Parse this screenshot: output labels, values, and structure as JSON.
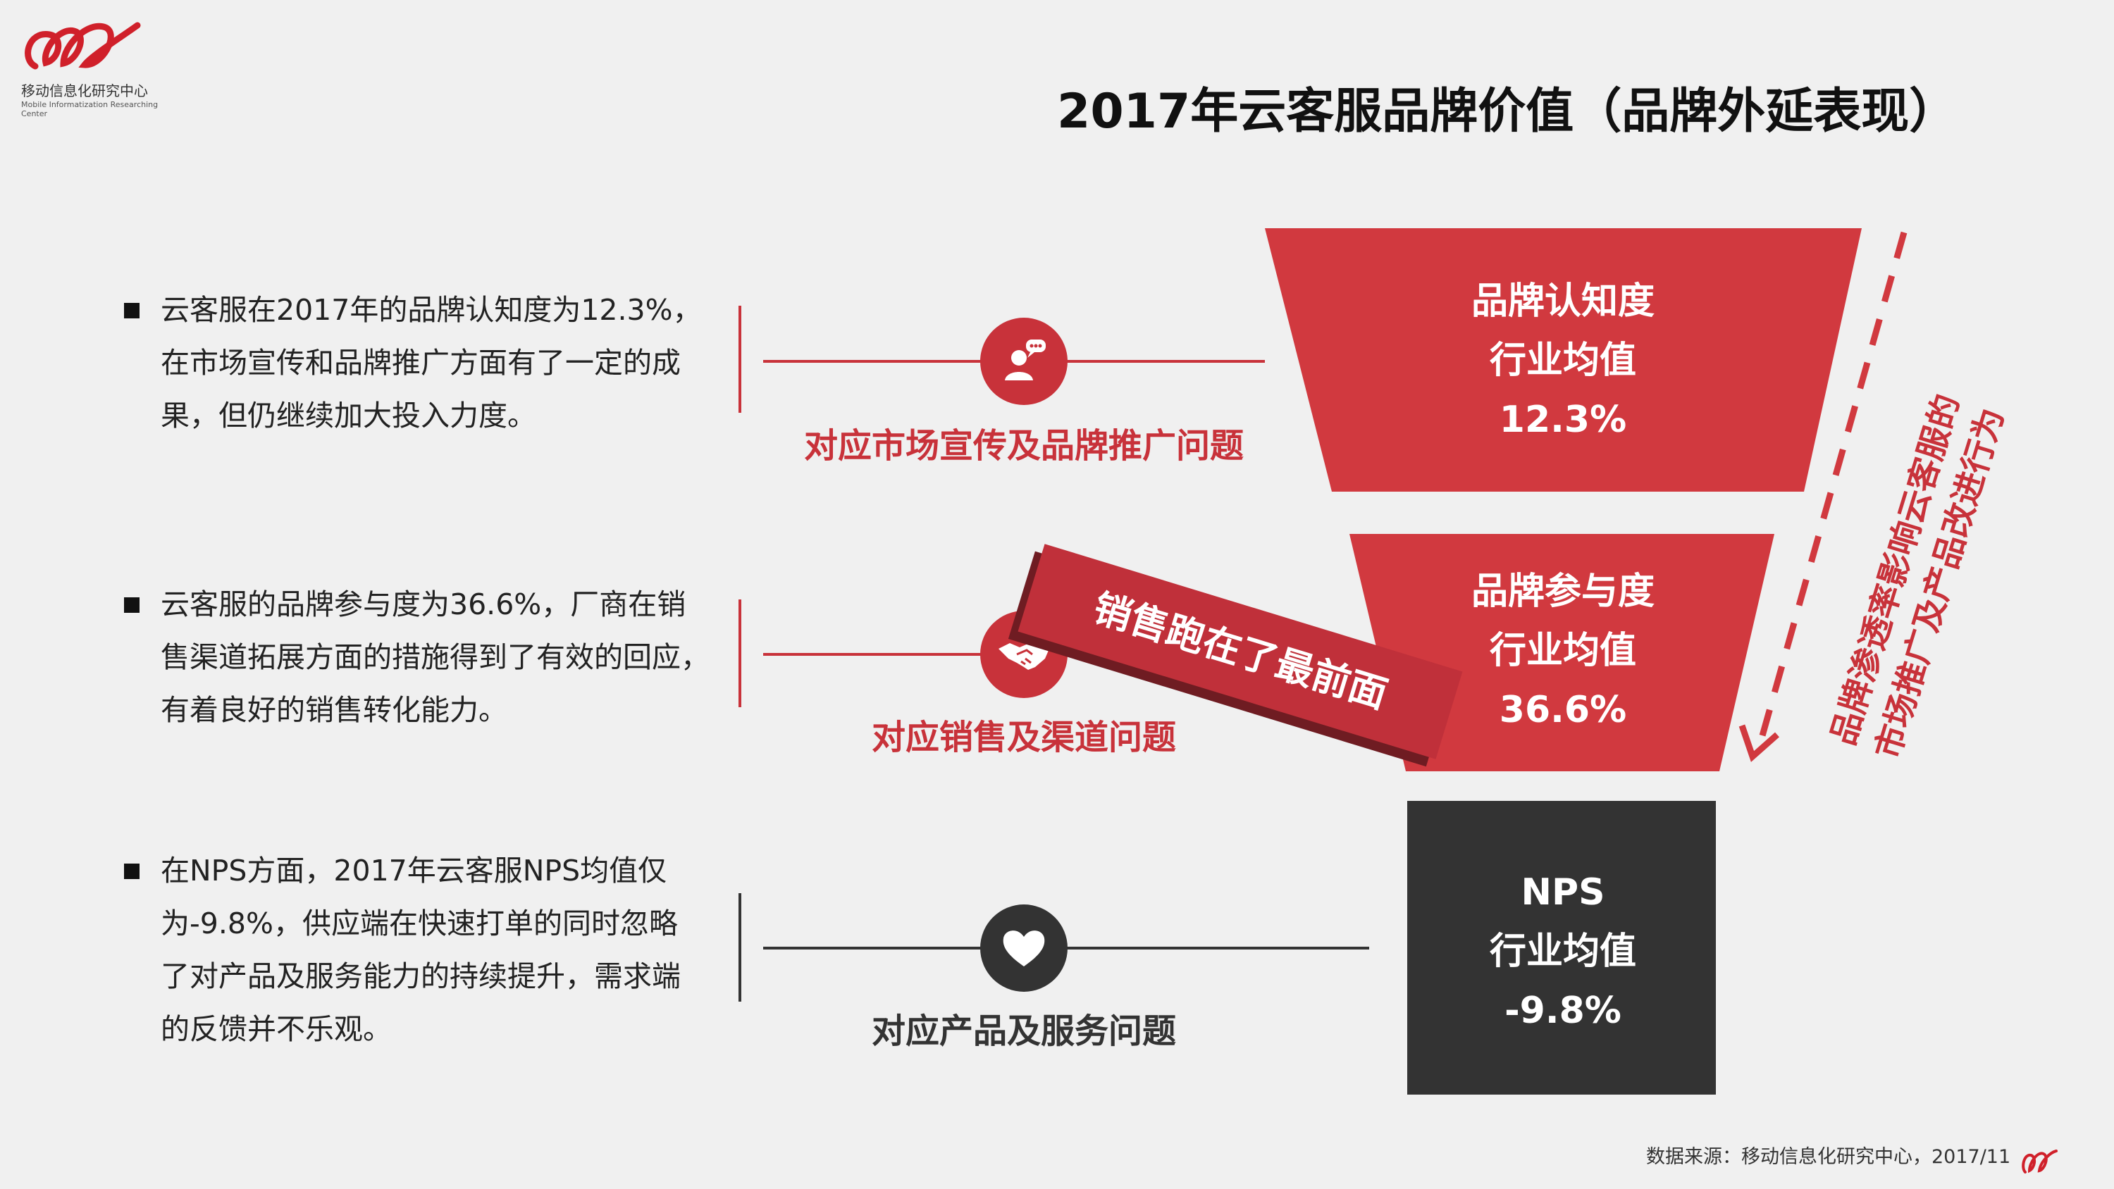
{
  "logo": {
    "cn": "移动信息化研究中心",
    "en": "Mobile Informatization Researching Center"
  },
  "title": "2017年云客服品牌价值（品牌外延表现）",
  "items": [
    {
      "text_lines": [
        "云客服在2017年的品牌认知度为12.3%，",
        "在市场宣传和品牌推广方面有了一定的成",
        "果，但仍继续加大投入力度。"
      ],
      "label": "对应市场宣传及品牌推广问题",
      "icon": "person-chat-icon"
    },
    {
      "text_lines": [
        "云客服的品牌参与度为36.6%，厂商在销",
        "售渠道拓展方面的措施得到了有效的回应，",
        "有着良好的销售转化能力。"
      ],
      "label": "对应销售及渠道问题",
      "icon": "handshake-icon"
    },
    {
      "text_lines": [
        "在NPS方面，2017年云客服NPS均值仅",
        "为-9.8%，供应端在快速打单的同时忽略",
        "了对产品及服务能力的持续提升，需求端",
        "的反馈并不乐观。"
      ],
      "label": "对应产品及服务问题",
      "icon": "heart-icon"
    }
  ],
  "funnel": [
    {
      "name": "品牌认知度",
      "sub": "行业均值",
      "value": "12.3%"
    },
    {
      "name": "品牌参与度",
      "sub": "行业均值",
      "value": "36.6%"
    },
    {
      "name": "NPS",
      "sub": "行业均值",
      "value": "-9.8%"
    }
  ],
  "banner": "销售跑在了最前面",
  "side_note": [
    "品牌渗透率影响云客服的",
    "市场推广及产品改进行为"
  ],
  "source": "数据来源：移动信息化研究中心，2017/11",
  "colors": {
    "red": "#c8323a",
    "dark": "#333333",
    "background": "#f0f0f0"
  }
}
